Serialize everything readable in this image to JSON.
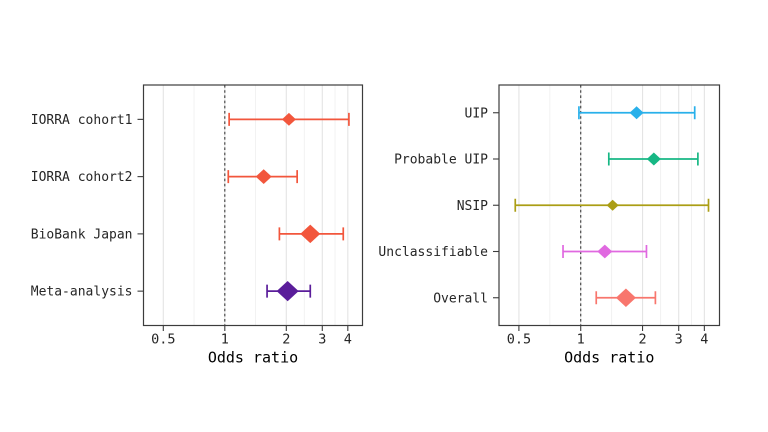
{
  "figure": {
    "background": "#ffffff"
  },
  "style": {
    "panel_border_color": "#3c3c3c",
    "grid_major_color": "#e4e4e4",
    "grid_minor_color": "#f0f0f0",
    "reference_line_color": "#3c3c3c",
    "axis_text_color": "#262626",
    "axis_title_color": "#000000"
  },
  "chart_data": [
    {
      "type": "forest",
      "panel": "left",
      "title": "",
      "xlabel": "Odds ratio",
      "xscale": "log10",
      "xlim": [
        0.4,
        4.72
      ],
      "x_ticks": [
        0.5,
        1,
        2,
        3,
        4
      ],
      "x_tick_labels": [
        "0.5",
        "1",
        "2",
        "3",
        "4"
      ],
      "x_minor_ticks": [
        0.7071,
        1.4142,
        2.4495,
        3.4641
      ],
      "ref_line_x": 1,
      "grid": true,
      "legend": "none",
      "rows": [
        {
          "label": "IORRA cohort1",
          "or": 2.06,
          "ci_low": 1.05,
          "ci_high": 4.05,
          "color": "#f2563c",
          "marker_size": 14
        },
        {
          "label": "IORRA cohort2",
          "or": 1.55,
          "ci_low": 1.04,
          "ci_high": 2.26,
          "color": "#f2563c",
          "marker_size": 16
        },
        {
          "label": "BioBank Japan",
          "or": 2.62,
          "ci_low": 1.85,
          "ci_high": 3.8,
          "color": "#f2563c",
          "marker_size": 20
        },
        {
          "label": "Meta-analysis",
          "or": 2.03,
          "ci_low": 1.61,
          "ci_high": 2.62,
          "color": "#5a1d9a",
          "marker_size": 22
        }
      ]
    },
    {
      "type": "forest",
      "panel": "right",
      "title": "",
      "xlabel": "Odds ratio",
      "xscale": "log10",
      "xlim": [
        0.4,
        4.74
      ],
      "x_ticks": [
        0.5,
        1,
        2,
        3,
        4
      ],
      "x_tick_labels": [
        "0.5",
        "1",
        "2",
        "3",
        "4"
      ],
      "x_minor_ticks": [
        0.7071,
        1.4142,
        2.4495,
        3.4641
      ],
      "ref_line_x": 1,
      "grid": true,
      "legend": "none",
      "rows": [
        {
          "label": "UIP",
          "or": 1.87,
          "ci_low": 0.98,
          "ci_high": 3.59,
          "color": "#29b0ea",
          "marker_size": 14
        },
        {
          "label": "Probable UIP",
          "or": 2.27,
          "ci_low": 1.37,
          "ci_high": 3.72,
          "color": "#17b784",
          "marker_size": 14
        },
        {
          "label": "NSIP",
          "or": 1.43,
          "ci_low": 0.48,
          "ci_high": 4.19,
          "color": "#ab9e15",
          "marker_size": 12
        },
        {
          "label": "Unclassifiable",
          "or": 1.31,
          "ci_low": 0.82,
          "ci_high": 2.09,
          "color": "#e069e0",
          "marker_size": 15
        },
        {
          "label": "Overall",
          "or": 1.66,
          "ci_low": 1.19,
          "ci_high": 2.31,
          "color": "#f8766d",
          "marker_size": 20
        }
      ]
    }
  ]
}
